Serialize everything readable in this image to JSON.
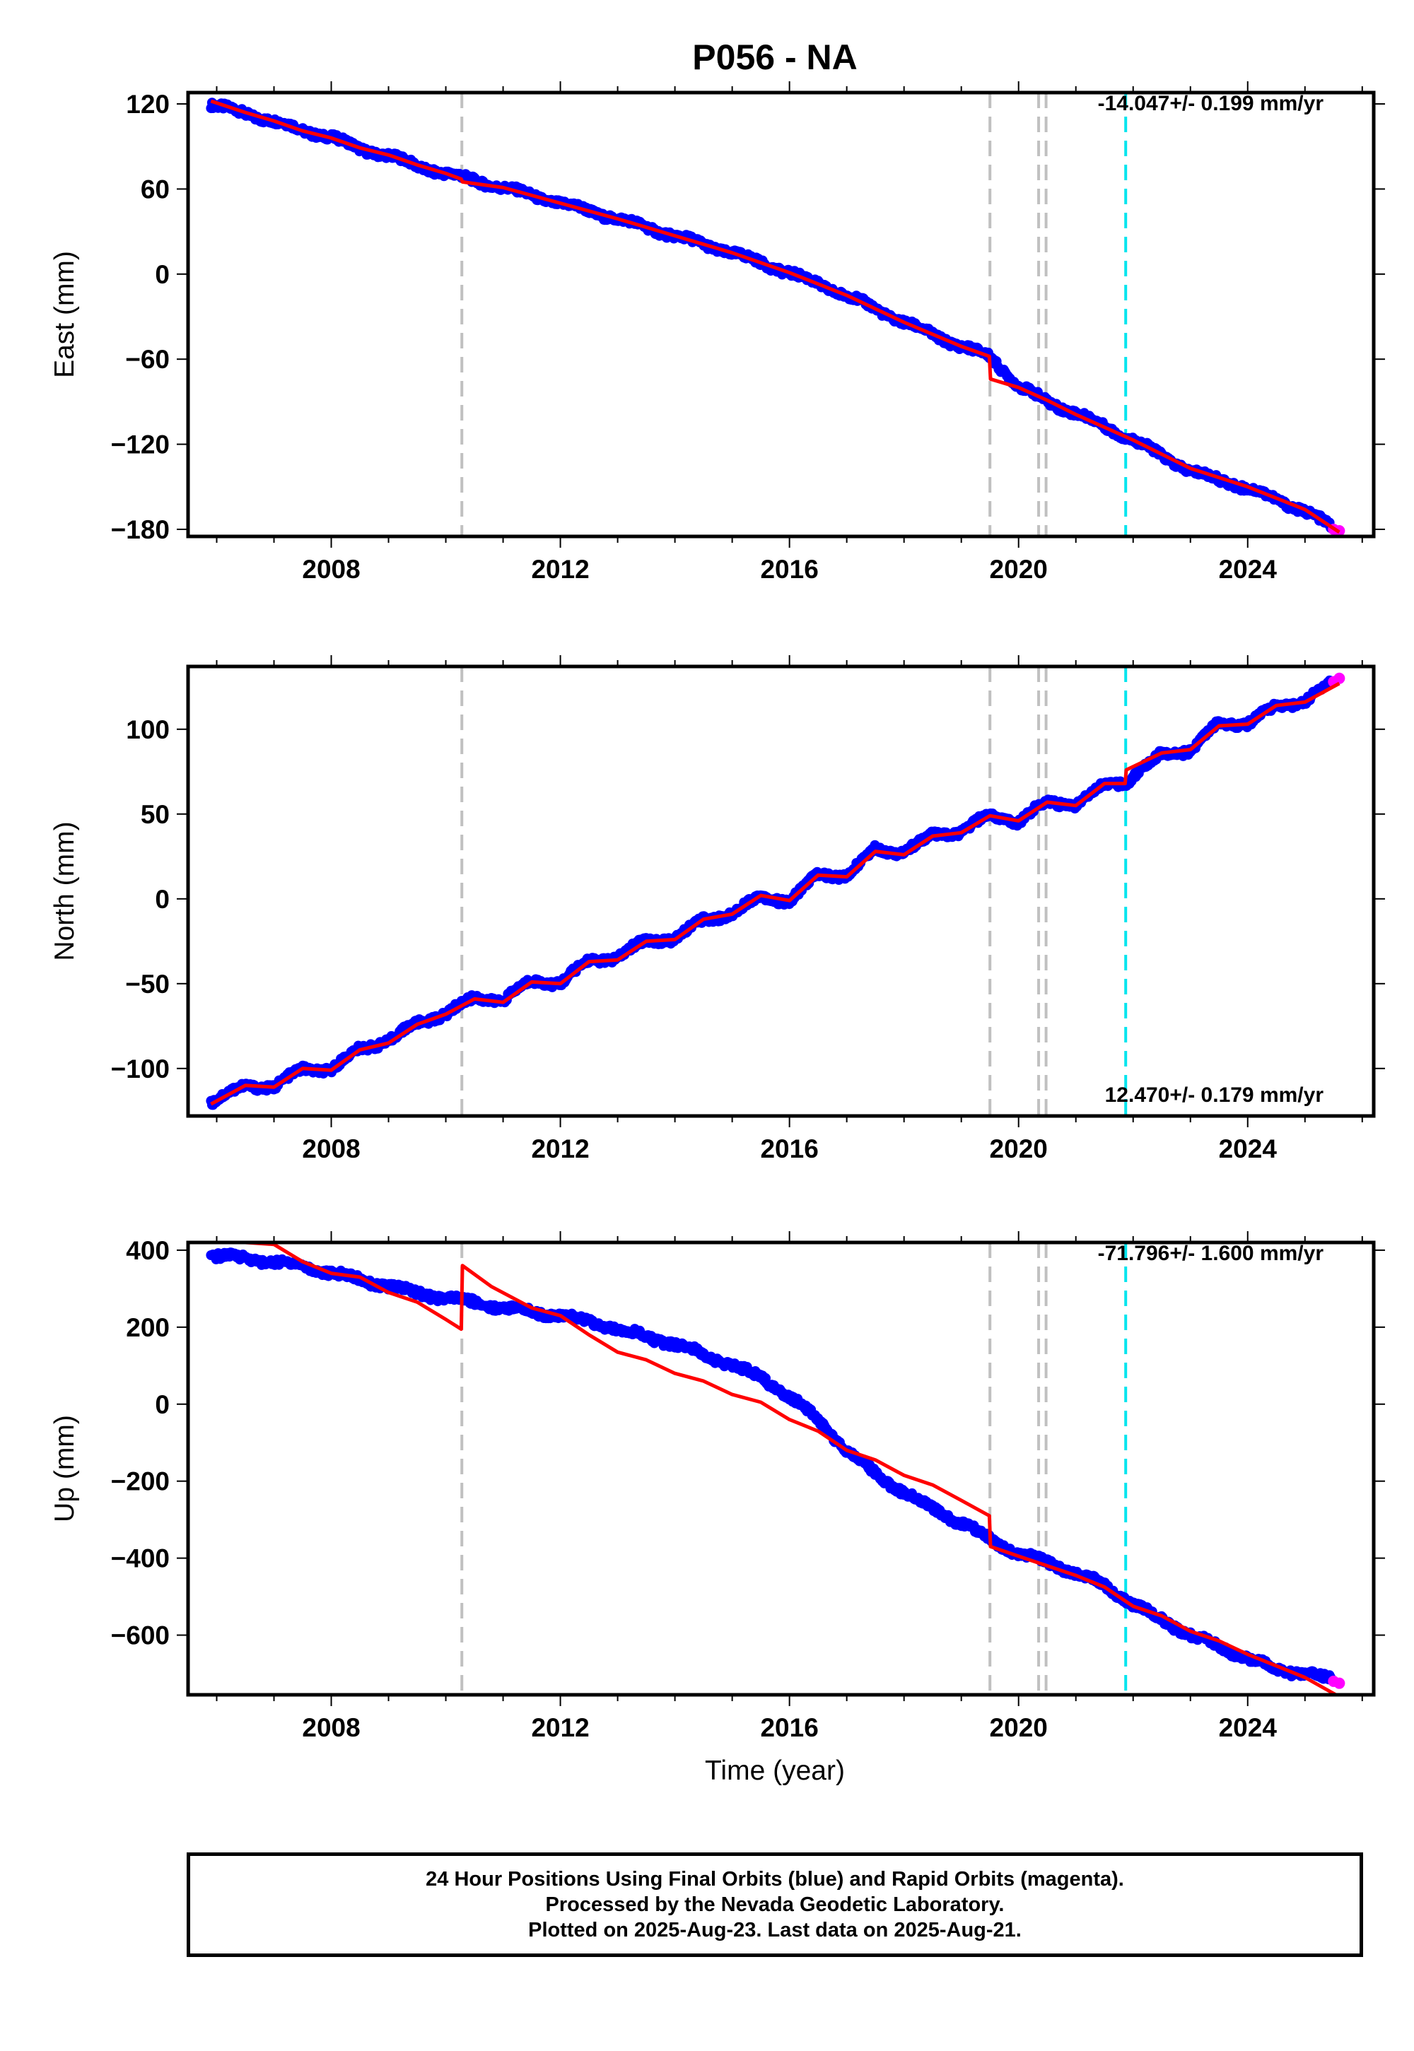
{
  "title": "P056 - NA",
  "xlabel": "Time (year)",
  "colors": {
    "final_orbits": "#0000ff",
    "rapid_orbits": "#ff00ff",
    "model": "#ff0000",
    "equipment_change": "#c0c0c0",
    "earthquake": "#00e5ee"
  },
  "x_ticks": [
    2008,
    2012,
    2016,
    2020,
    2024
  ],
  "xlim": [
    2005.5,
    2026.2
  ],
  "event_lines": [
    {
      "year": 2010.28,
      "type": "equipment_change"
    },
    {
      "year": 2019.5,
      "type": "equipment_change"
    },
    {
      "year": 2020.35,
      "type": "equipment_change"
    },
    {
      "year": 2020.48,
      "type": "equipment_change"
    },
    {
      "year": 2021.87,
      "type": "earthquake"
    }
  ],
  "chart_data": [
    {
      "type": "scatter",
      "name": "east",
      "ylabel": "East (mm)",
      "ylim": [
        -185,
        128
      ],
      "y_ticks": [
        120,
        60,
        0,
        -60,
        -120,
        -180
      ],
      "y_tick_labels": [
        "120",
        "60",
        "0",
        "−60",
        "−120",
        "−180"
      ],
      "annotation": "-14.047+/- 0.199 mm/yr",
      "annotation_position": "top-right",
      "final": {
        "x": [
          2005.9,
          2006.5,
          2007.0,
          2007.5,
          2008.0,
          2008.5,
          2009.0,
          2009.5,
          2010.0,
          2010.3,
          2011.0,
          2012.0,
          2013.0,
          2014.0,
          2015.0,
          2016.0,
          2017.0,
          2018.0,
          2019.0,
          2019.5,
          2020.0,
          2020.5,
          2021.0,
          2022.0,
          2023.0,
          2024.0,
          2025.0,
          2025.45
        ],
        "y": [
          120,
          113,
          108,
          101,
          97,
          88,
          84,
          76,
          71,
          68,
          61,
          50,
          39,
          27,
          15,
          1,
          -15,
          -34,
          -51,
          -58,
          -79,
          -90,
          -98,
          -117,
          -139,
          -151,
          -167,
          -178
        ]
      },
      "rapid": {
        "x": [
          2025.5,
          2025.6
        ],
        "y": [
          -180,
          -181
        ]
      },
      "model": {
        "x": [
          2005.9,
          2006.5,
          2007.0,
          2007.5,
          2008.0,
          2008.5,
          2009.0,
          2009.5,
          2010.0,
          2010.27,
          2010.29,
          2011.0,
          2012.0,
          2013.0,
          2014.0,
          2015.0,
          2016.0,
          2017.0,
          2018.0,
          2019.0,
          2019.49,
          2019.51,
          2020.0,
          2020.5,
          2021.0,
          2022.0,
          2023.0,
          2024.0,
          2025.0,
          2025.6
        ],
        "y": [
          122,
          114,
          108,
          101,
          96,
          89,
          84,
          77,
          71,
          67,
          65,
          61,
          50,
          39,
          27,
          15,
          1,
          -15,
          -34,
          -51,
          -58,
          -74,
          -80,
          -89,
          -99,
          -117,
          -137,
          -150,
          -166,
          -182
        ]
      }
    },
    {
      "type": "scatter",
      "name": "north",
      "ylabel": "North (mm)",
      "ylim": [
        -128,
        137
      ],
      "y_ticks": [
        100,
        50,
        0,
        -50,
        -100
      ],
      "y_tick_labels": [
        "100",
        "50",
        "0",
        "−50",
        "−100"
      ],
      "annotation": "12.470+/- 0.179 mm/yr",
      "annotation_position": "bottom-right",
      "final": {
        "x": [
          2005.9,
          2006.5,
          2007.0,
          2007.5,
          2008.0,
          2008.5,
          2009.0,
          2009.5,
          2010.0,
          2010.5,
          2011.0,
          2011.5,
          2012.0,
          2012.5,
          2013.0,
          2013.5,
          2014.0,
          2014.5,
          2015.0,
          2015.5,
          2016.0,
          2016.5,
          2017.0,
          2017.5,
          2018.0,
          2018.5,
          2019.0,
          2019.5,
          2020.0,
          2020.5,
          2021.0,
          2021.5,
          2021.9,
          2022.5,
          2023.0,
          2023.5,
          2024.0,
          2024.5,
          2025.0,
          2025.45
        ],
        "y": [
          -120,
          -110,
          -111,
          -100,
          -101,
          -88,
          -84,
          -73,
          -68,
          -58,
          -60,
          -48,
          -50,
          -36,
          -35,
          -24,
          -24,
          -12,
          -9,
          2,
          -2,
          15,
          13,
          30,
          27,
          38,
          39,
          50,
          45,
          58,
          55,
          68,
          69,
          86,
          87,
          104,
          103,
          114,
          116,
          128
        ]
      },
      "rapid": {
        "x": [
          2025.5,
          2025.6
        ],
        "y": [
          128,
          130
        ]
      },
      "model": {
        "x": [
          2005.9,
          2006.5,
          2007.0,
          2007.5,
          2008.0,
          2008.5,
          2009.0,
          2009.5,
          2010.0,
          2010.5,
          2011.0,
          2011.5,
          2012.0,
          2012.5,
          2013.0,
          2013.5,
          2014.0,
          2014.5,
          2015.0,
          2015.5,
          2016.0,
          2016.5,
          2017.0,
          2017.5,
          2018.0,
          2018.5,
          2019.0,
          2019.5,
          2020.0,
          2020.5,
          2021.0,
          2021.5,
          2021.86,
          2021.88,
          2022.5,
          2023.0,
          2023.5,
          2024.0,
          2024.5,
          2025.0,
          2025.6
        ],
        "y": [
          -121,
          -110,
          -111,
          -100,
          -101,
          -89,
          -85,
          -74,
          -68,
          -59,
          -61,
          -49,
          -50,
          -37,
          -36,
          -25,
          -24,
          -12,
          -9,
          2,
          -1,
          14,
          13,
          28,
          26,
          37,
          39,
          49,
          46,
          57,
          55,
          68,
          68,
          76,
          86,
          88,
          102,
          103,
          114,
          116,
          127
        ]
      }
    },
    {
      "type": "scatter",
      "name": "up",
      "ylabel": "Up (mm)",
      "ylim": [
        -755,
        420
      ],
      "y_ticks": [
        400,
        200,
        0,
        -200,
        -400,
        -600
      ],
      "y_tick_labels": [
        "400",
        "200",
        "0",
        "−200",
        "−400",
        "−600"
      ],
      "annotation": "-71.796+/- 1.600 mm/yr",
      "annotation_position": "top-right",
      "final": {
        "x": [
          2005.9,
          2006.5,
          2007.0,
          2007.5,
          2008.0,
          2008.5,
          2009.0,
          2009.5,
          2010.0,
          2010.5,
          2011.0,
          2011.5,
          2012.0,
          2012.5,
          2013.0,
          2013.5,
          2014.0,
          2014.5,
          2015.0,
          2015.5,
          2016.0,
          2016.5,
          2017.0,
          2017.5,
          2018.0,
          2018.5,
          2019.0,
          2019.5,
          2020.0,
          2020.5,
          2021.0,
          2021.5,
          2022.0,
          2022.5,
          2023.0,
          2023.5,
          2024.0,
          2024.5,
          2025.0,
          2025.45
        ],
        "y": [
          385,
          380,
          368,
          360,
          340,
          325,
          305,
          290,
          275,
          265,
          250,
          240,
          230,
          215,
          195,
          175,
          155,
          130,
          100,
          70,
          20,
          -40,
          -120,
          -180,
          -230,
          -270,
          -310,
          -350,
          -390,
          -410,
          -440,
          -470,
          -520,
          -560,
          -600,
          -630,
          -660,
          -690,
          -700,
          -715
        ]
      },
      "rapid": {
        "x": [
          2025.5,
          2025.6
        ],
        "y": [
          -720,
          -725
        ]
      },
      "model": {
        "x": [
          2005.9,
          2006.5,
          2007.0,
          2007.5,
          2008.0,
          2008.5,
          2009.0,
          2009.5,
          2010.0,
          2010.27,
          2010.29,
          2010.8,
          2011.5,
          2012.0,
          2012.5,
          2013.0,
          2013.5,
          2014.0,
          2014.5,
          2015.0,
          2015.5,
          2016.0,
          2016.5,
          2017.0,
          2017.5,
          2018.0,
          2018.5,
          2019.0,
          2019.49,
          2019.51,
          2020.0,
          2020.5,
          2021.0,
          2021.5,
          2022.0,
          2022.5,
          2023.0,
          2023.5,
          2024.0,
          2024.5,
          2025.0,
          2025.6
        ],
        "y": [
          420,
          420,
          415,
          370,
          340,
          330,
          290,
          265,
          220,
          195,
          360,
          305,
          250,
          230,
          180,
          135,
          115,
          80,
          60,
          25,
          5,
          -40,
          -70,
          -120,
          -145,
          -185,
          -210,
          -250,
          -290,
          -370,
          -395,
          -420,
          -445,
          -475,
          -525,
          -550,
          -590,
          -615,
          -650,
          -680,
          -710,
          -760
        ]
      }
    }
  ],
  "footer": {
    "line1": "24 Hour Positions Using Final Orbits (blue) and Rapid Orbits (magenta).",
    "line2": "Processed by the Nevada Geodetic Laboratory.",
    "line3": "Plotted on 2025-Aug-23. Last data on 2025-Aug-21."
  }
}
